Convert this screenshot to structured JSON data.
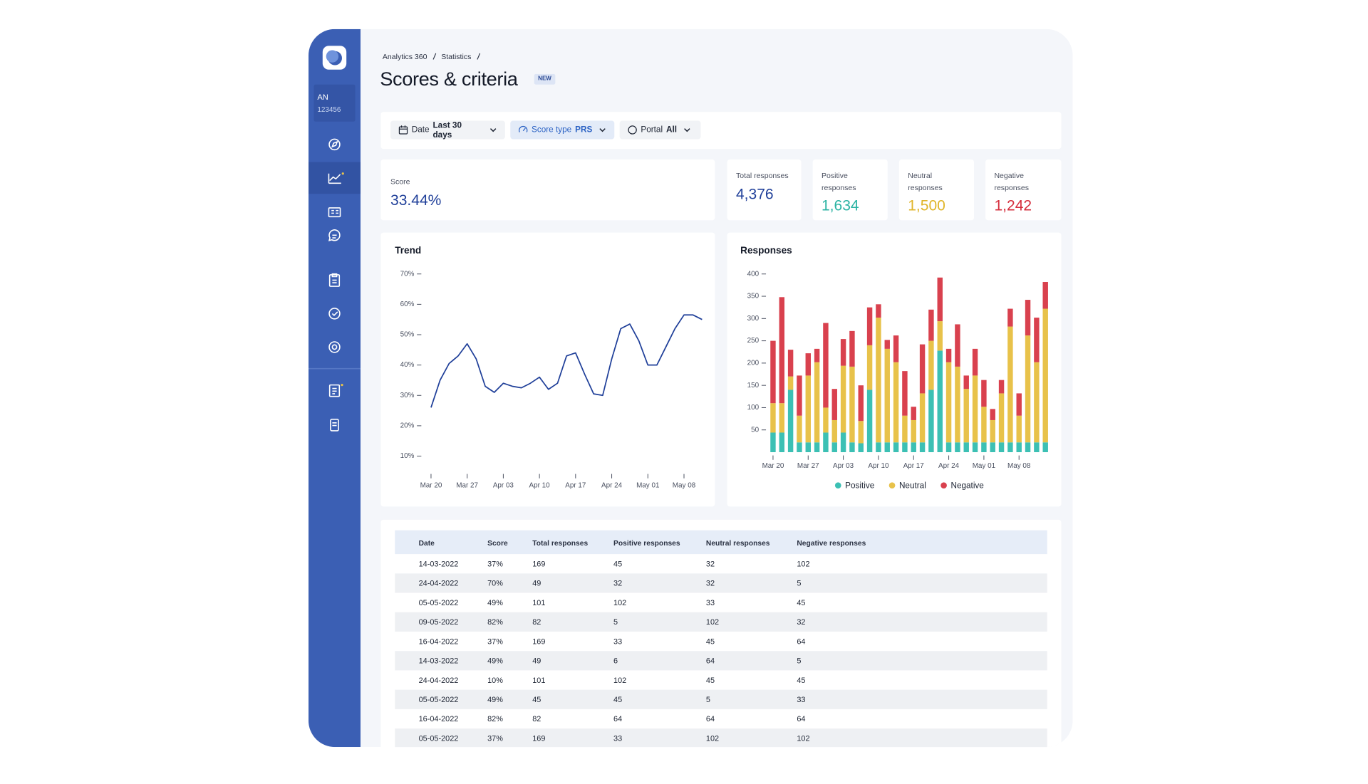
{
  "breadcrumb": [
    "Analytics 360",
    "Statistics"
  ],
  "page_title": "Scores & criteria",
  "badge": "NEW",
  "account": {
    "initials": "AN",
    "number": "123456"
  },
  "filters": [
    {
      "label": "Date",
      "value": "Last 30 days",
      "active": false
    },
    {
      "label": "Score type",
      "value": "PRS",
      "active": true
    },
    {
      "label": "Portal",
      "value": "All",
      "active": false
    }
  ],
  "kpis": [
    {
      "label": "Score",
      "value": "33.44%",
      "color": "#1f3f99"
    },
    {
      "label": "Total responses",
      "value": "4,376",
      "color": "#1f3f99"
    },
    {
      "label": "Positive responses",
      "value": "1,634",
      "color": "#2bb3a3"
    },
    {
      "label": "Neutral responses",
      "value": "1,500",
      "color": "#e0b52a"
    },
    {
      "label": "Negative responses",
      "value": "1,242",
      "color": "#d62f3d"
    }
  ],
  "chart_data": [
    {
      "type": "line",
      "title": "Trend",
      "color": "#1f3f99",
      "categories": [
        "Mar 20",
        null,
        null,
        null,
        "Mar 27",
        null,
        null,
        null,
        "Apr 03",
        null,
        null,
        null,
        "Apr 10",
        null,
        null,
        null,
        "Apr 17",
        null,
        null,
        null,
        "Apr 24",
        null,
        null,
        null,
        "May 01",
        null,
        null,
        null,
        "May 08",
        null,
        null
      ],
      "values": [
        26,
        35,
        40.5,
        43,
        47,
        42,
        33,
        31,
        34,
        33,
        32.5,
        34,
        36,
        32,
        34,
        43,
        44,
        37,
        30.5,
        30,
        42,
        52,
        53.5,
        48,
        40,
        40,
        46,
        52,
        56.5,
        56.5,
        55
      ],
      "ylim": [
        5,
        70
      ],
      "yticks": [
        {
          "value": 10,
          "label": "10%"
        },
        {
          "value": 20,
          "label": "20%"
        },
        {
          "value": 30,
          "label": "30%"
        },
        {
          "value": 40,
          "label": "40%"
        },
        {
          "value": 50,
          "label": "50%"
        },
        {
          "value": 60,
          "label": "60%"
        },
        {
          "value": 70,
          "label": "70%"
        }
      ],
      "grid": false
    },
    {
      "type": "stacked-bar",
      "title": "Responses",
      "legend": "bottom",
      "categories": [
        "Mar 20",
        null,
        null,
        null,
        "Mar 27",
        null,
        null,
        null,
        "Apr 03",
        null,
        null,
        null,
        "Apr 10",
        null,
        null,
        null,
        "Apr 17",
        null,
        null,
        null,
        "Apr 24",
        null,
        null,
        null,
        "May 01",
        null,
        null,
        null,
        "May 08",
        null,
        null,
        null
      ],
      "series": [
        {
          "name": "Positive",
          "color": "#3cc0b4",
          "values": [
            44,
            44,
            140,
            22,
            22,
            22,
            44,
            22,
            44,
            22,
            20,
            140,
            22,
            22,
            22,
            22,
            22,
            22,
            140,
            228,
            22,
            22,
            22,
            22,
            22,
            22,
            22,
            22,
            22,
            22,
            22,
            22
          ]
        },
        {
          "name": "Neutral",
          "color": "#e8c24a",
          "values": [
            66,
            66,
            30,
            60,
            150,
            180,
            56,
            50,
            150,
            170,
            50,
            100,
            280,
            210,
            180,
            60,
            50,
            110,
            110,
            66,
            180,
            170,
            120,
            150,
            80,
            50,
            110,
            260,
            60,
            240,
            180,
            300
          ]
        },
        {
          "name": "Negative",
          "color": "#d9414e",
          "values": [
            140,
            238,
            60,
            90,
            50,
            30,
            190,
            70,
            60,
            80,
            80,
            85,
            30,
            20,
            60,
            100,
            30,
            110,
            70,
            98,
            30,
            95,
            30,
            60,
            60,
            25,
            30,
            40,
            50,
            80,
            100,
            60
          ]
        }
      ],
      "ylim": [
        0,
        420
      ],
      "yticks": [
        50,
        100,
        150,
        200,
        250,
        300,
        350,
        400
      ],
      "grid": false
    }
  ],
  "table": {
    "columns": [
      "Date",
      "Score",
      "Total responses",
      "Positive responses",
      "Neutral responses",
      "Negative responses"
    ],
    "rows": [
      [
        "14-03-2022",
        "37%",
        "169",
        "45",
        "32",
        "102"
      ],
      [
        "24-04-2022",
        "70%",
        "49",
        "32",
        "32",
        "5"
      ],
      [
        "05-05-2022",
        "49%",
        "101",
        "102",
        "33",
        "45"
      ],
      [
        "09-05-2022",
        "82%",
        "82",
        "5",
        "102",
        "32"
      ],
      [
        "16-04-2022",
        "37%",
        "169",
        "33",
        "45",
        "64"
      ],
      [
        "14-03-2022",
        "49%",
        "49",
        "6",
        "64",
        "5"
      ],
      [
        "24-04-2022",
        "10%",
        "101",
        "102",
        "45",
        "45"
      ],
      [
        "05-05-2022",
        "49%",
        "45",
        "45",
        "5",
        "33"
      ],
      [
        "16-04-2022",
        "82%",
        "82",
        "64",
        "64",
        "64"
      ],
      [
        "05-05-2022",
        "37%",
        "169",
        "33",
        "102",
        "102"
      ]
    ]
  }
}
